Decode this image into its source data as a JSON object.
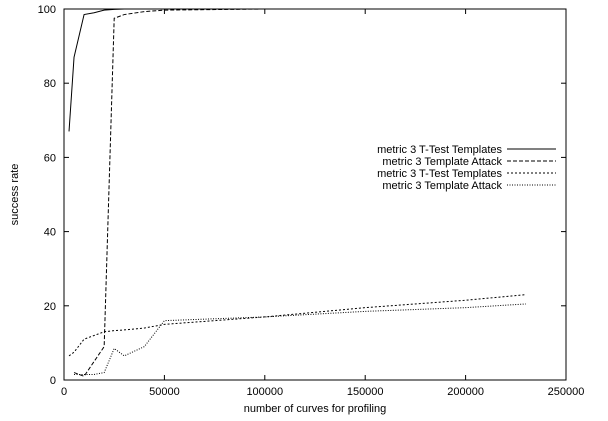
{
  "chart_data": {
    "type": "line",
    "title": "",
    "xlabel": "number of curves for profiling",
    "ylabel": "success rate",
    "xlim": [
      0,
      250000
    ],
    "ylim": [
      0,
      100
    ],
    "xticks": [
      0,
      50000,
      100000,
      150000,
      200000,
      250000
    ],
    "xtick_labels": [
      "0",
      "50000",
      "100000",
      "150000",
      "200000",
      "250000"
    ],
    "yticks": [
      0,
      20,
      40,
      60,
      80,
      100
    ],
    "ytick_labels": [
      "0",
      "20",
      "40",
      "60",
      "80",
      "100"
    ],
    "grid": false,
    "legend_placement": "right",
    "series": [
      {
        "name": "metric 3 T-Test Templates",
        "style": "solid",
        "x": [
          2500,
          5000,
          10000,
          15000,
          20000,
          25000,
          30000,
          40000,
          50000,
          100000,
          150000,
          200000,
          230000
        ],
        "y": [
          67,
          87,
          98.5,
          99,
          99.7,
          99.9,
          100,
          100,
          100,
          100,
          100,
          100,
          100
        ]
      },
      {
        "name": "metric 3 Template Attack",
        "style": "dashed",
        "x": [
          5000,
          10000,
          15000,
          20000,
          25000,
          30000,
          40000,
          50000,
          100000,
          150000,
          200000,
          230000
        ],
        "y": [
          2,
          1,
          5,
          9,
          97.5,
          98.5,
          99.3,
          99.7,
          100,
          100,
          100,
          100
        ]
      },
      {
        "name": "metric 3 T-Test Templates",
        "style": "dotted",
        "x": [
          2500,
          5000,
          10000,
          15000,
          20000,
          25000,
          30000,
          40000,
          50000,
          100000,
          150000,
          200000,
          230000
        ],
        "y": [
          6.5,
          7.5,
          11,
          12,
          13,
          13.3,
          13.5,
          14,
          15,
          17,
          19.5,
          21.5,
          23
        ]
      },
      {
        "name": "metric 3 Template Attack",
        "style": "dotted-fine",
        "x": [
          5000,
          10000,
          15000,
          20000,
          25000,
          30000,
          40000,
          50000,
          100000,
          150000,
          200000,
          230000
        ],
        "y": [
          1.5,
          1.5,
          1.5,
          2,
          8.5,
          6.5,
          9,
          16,
          17,
          18.5,
          19.5,
          20.5
        ]
      }
    ]
  }
}
